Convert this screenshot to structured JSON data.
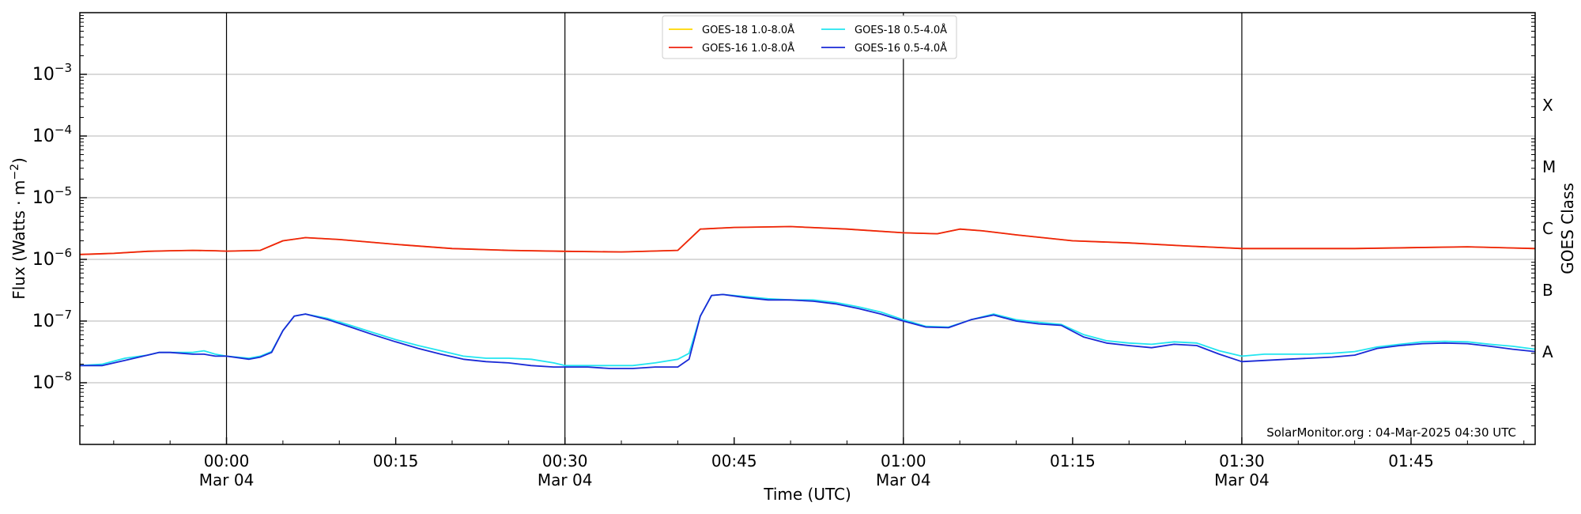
{
  "chart_data": {
    "type": "line",
    "xlabel": "Time (UTC)",
    "ylabel": "Flux (Watts · m",
    "ylabel_sup": "−2",
    "ylabel_close": ")",
    "right_label": "GOES Class",
    "y_scale": "log",
    "xlim": [
      -13,
      116
    ],
    "ylim": [
      1e-09,
      0.01
    ],
    "x_ticks": [
      {
        "x": 0,
        "label": "00:00",
        "sub": "Mar 04"
      },
      {
        "x": 15,
        "label": "00:15",
        "sub": ""
      },
      {
        "x": 30,
        "label": "00:30",
        "sub": "Mar 04"
      },
      {
        "x": 45,
        "label": "00:45",
        "sub": ""
      },
      {
        "x": 60,
        "label": "01:00",
        "sub": "Mar 04"
      },
      {
        "x": 75,
        "label": "01:15",
        "sub": ""
      },
      {
        "x": 90,
        "label": "01:30",
        "sub": "Mar 04"
      },
      {
        "x": 105,
        "label": "01:45",
        "sub": ""
      }
    ],
    "y_ticks": [
      {
        "value": 1e-08,
        "base": "10",
        "exp": "−8"
      },
      {
        "value": 1e-07,
        "base": "10",
        "exp": "−7"
      },
      {
        "value": 1e-06,
        "base": "10",
        "exp": "−6"
      },
      {
        "value": 1e-05,
        "base": "10",
        "exp": "−5"
      },
      {
        "value": 0.0001,
        "base": "10",
        "exp": "−4"
      },
      {
        "value": 0.001,
        "base": "10",
        "exp": "−3"
      }
    ],
    "vlines": [
      0,
      30,
      60,
      90
    ],
    "goes_classes": [
      {
        "label": "A",
        "value": 1e-08
      },
      {
        "label": "B",
        "value": 1e-07
      },
      {
        "label": "C",
        "value": 1e-06
      },
      {
        "label": "M",
        "value": 1e-05
      },
      {
        "label": "X",
        "value": 0.0001
      }
    ],
    "grid": true,
    "legend_position": "top-center",
    "annotation": "SolarMonitor.org : 04-Mar-2025 04:30 UTC",
    "series": [
      {
        "name": "GOES-18 1.0-8.0Å",
        "color": "#ffd700",
        "x": [
          -13,
          -10,
          -7,
          -5,
          -3,
          -1,
          0,
          3,
          5,
          7,
          10,
          15,
          20,
          25,
          30,
          35,
          40,
          42,
          45,
          50,
          55,
          60,
          63,
          65,
          67,
          70,
          75,
          80,
          85,
          90,
          95,
          100,
          105,
          110,
          116
        ],
        "values": [
          1.2e-06,
          1.25e-06,
          1.35e-06,
          1.38e-06,
          1.4e-06,
          1.38e-06,
          1.36e-06,
          1.4e-06,
          2e-06,
          2.25e-06,
          2.1e-06,
          1.75e-06,
          1.5e-06,
          1.4e-06,
          1.35e-06,
          1.32e-06,
          1.4e-06,
          3.1e-06,
          3.3e-06,
          3.4e-06,
          3.1e-06,
          2.7e-06,
          2.6e-06,
          3.1e-06,
          2.9e-06,
          2.5e-06,
          2e-06,
          1.85e-06,
          1.65e-06,
          1.5e-06,
          1.5e-06,
          1.5e-06,
          1.55e-06,
          1.6e-06,
          1.5e-06
        ]
      },
      {
        "name": "GOES-16 1.0-8.0Å",
        "color": "#ee2211",
        "x": [
          -13,
          -10,
          -7,
          -5,
          -3,
          -1,
          0,
          3,
          5,
          7,
          10,
          15,
          20,
          25,
          30,
          35,
          40,
          42,
          45,
          50,
          55,
          60,
          63,
          65,
          67,
          70,
          75,
          80,
          85,
          90,
          95,
          100,
          105,
          110,
          116
        ],
        "values": [
          1.2e-06,
          1.25e-06,
          1.35e-06,
          1.38e-06,
          1.4e-06,
          1.38e-06,
          1.36e-06,
          1.4e-06,
          2e-06,
          2.25e-06,
          2.1e-06,
          1.75e-06,
          1.5e-06,
          1.4e-06,
          1.35e-06,
          1.32e-06,
          1.4e-06,
          3.1e-06,
          3.3e-06,
          3.4e-06,
          3.1e-06,
          2.7e-06,
          2.6e-06,
          3.1e-06,
          2.9e-06,
          2.5e-06,
          2e-06,
          1.85e-06,
          1.65e-06,
          1.5e-06,
          1.5e-06,
          1.5e-06,
          1.55e-06,
          1.6e-06,
          1.5e-06
        ]
      },
      {
        "name": "GOES-18 0.5-4.0Å",
        "color": "#22e5f0",
        "x": [
          -13,
          -11,
          -9,
          -7,
          -6,
          -5,
          -3,
          -2,
          -1,
          0,
          2,
          3,
          4,
          5,
          6,
          7,
          9,
          11,
          13,
          15,
          17,
          19,
          21,
          23,
          25,
          27,
          29,
          30,
          32,
          34,
          36,
          38,
          40,
          41,
          42,
          43,
          44,
          46,
          48,
          50,
          52,
          54,
          56,
          58,
          60,
          62,
          64,
          66,
          68,
          70,
          72,
          74,
          76,
          78,
          80,
          82,
          84,
          86,
          88,
          90,
          92,
          94,
          96,
          98,
          100,
          102,
          104,
          106,
          108,
          110,
          112,
          114,
          116
        ],
        "values": [
          1.9e-08,
          2e-08,
          2.5e-08,
          2.8e-08,
          3.1e-08,
          3.1e-08,
          3.1e-08,
          3.3e-08,
          2.9e-08,
          2.7e-08,
          2.5e-08,
          2.7e-08,
          3.2e-08,
          7e-08,
          1.2e-07,
          1.3e-07,
          1.1e-07,
          8.5e-08,
          6.5e-08,
          5e-08,
          4e-08,
          3.3e-08,
          2.7e-08,
          2.5e-08,
          2.5e-08,
          2.4e-08,
          2.1e-08,
          1.9e-08,
          1.9e-08,
          1.9e-08,
          1.9e-08,
          2.1e-08,
          2.4e-08,
          3e-08,
          1.2e-07,
          2.6e-07,
          2.7e-07,
          2.5e-07,
          2.3e-07,
          2.2e-07,
          2.2e-07,
          2e-07,
          1.7e-07,
          1.4e-07,
          1.05e-07,
          8.2e-08,
          8e-08,
          1.05e-07,
          1.3e-07,
          1.05e-07,
          9.5e-08,
          8.8e-08,
          6e-08,
          4.8e-08,
          4.4e-08,
          4.2e-08,
          4.6e-08,
          4.4e-08,
          3.3e-08,
          2.7e-08,
          2.9e-08,
          2.9e-08,
          2.9e-08,
          3e-08,
          3.2e-08,
          3.8e-08,
          4.2e-08,
          4.6e-08,
          4.7e-08,
          4.6e-08,
          4.2e-08,
          3.9e-08,
          3.5e-08
        ]
      },
      {
        "name": "GOES-16 0.5-4.0Å",
        "color": "#1a2ad6",
        "x": [
          -13,
          -11,
          -9,
          -7,
          -6,
          -5,
          -3,
          -2,
          -1,
          0,
          2,
          3,
          4,
          5,
          6,
          7,
          9,
          11,
          13,
          15,
          17,
          19,
          21,
          23,
          25,
          27,
          29,
          30,
          32,
          34,
          36,
          38,
          40,
          41,
          42,
          43,
          44,
          46,
          48,
          50,
          52,
          54,
          56,
          58,
          60,
          62,
          64,
          66,
          68,
          70,
          72,
          74,
          76,
          78,
          80,
          82,
          84,
          86,
          88,
          90,
          92,
          94,
          96,
          98,
          100,
          102,
          104,
          106,
          108,
          110,
          112,
          114,
          116
        ],
        "values": [
          1.9e-08,
          1.9e-08,
          2.3e-08,
          2.8e-08,
          3.1e-08,
          3.1e-08,
          2.9e-08,
          2.9e-08,
          2.7e-08,
          2.7e-08,
          2.4e-08,
          2.6e-08,
          3.1e-08,
          7e-08,
          1.2e-07,
          1.3e-07,
          1.05e-07,
          8e-08,
          6e-08,
          4.6e-08,
          3.6e-08,
          2.9e-08,
          2.4e-08,
          2.2e-08,
          2.1e-08,
          1.9e-08,
          1.8e-08,
          1.8e-08,
          1.8e-08,
          1.7e-08,
          1.7e-08,
          1.8e-08,
          1.8e-08,
          2.4e-08,
          1.2e-07,
          2.6e-07,
          2.7e-07,
          2.4e-07,
          2.2e-07,
          2.2e-07,
          2.1e-07,
          1.9e-07,
          1.6e-07,
          1.3e-07,
          1e-07,
          8e-08,
          7.8e-08,
          1.05e-07,
          1.25e-07,
          1e-07,
          9e-08,
          8.5e-08,
          5.5e-08,
          4.4e-08,
          4e-08,
          3.7e-08,
          4.2e-08,
          4e-08,
          2.9e-08,
          2.2e-08,
          2.3e-08,
          2.4e-08,
          2.5e-08,
          2.6e-08,
          2.8e-08,
          3.6e-08,
          4e-08,
          4.3e-08,
          4.4e-08,
          4.3e-08,
          3.9e-08,
          3.5e-08,
          3.2e-08
        ]
      }
    ]
  }
}
